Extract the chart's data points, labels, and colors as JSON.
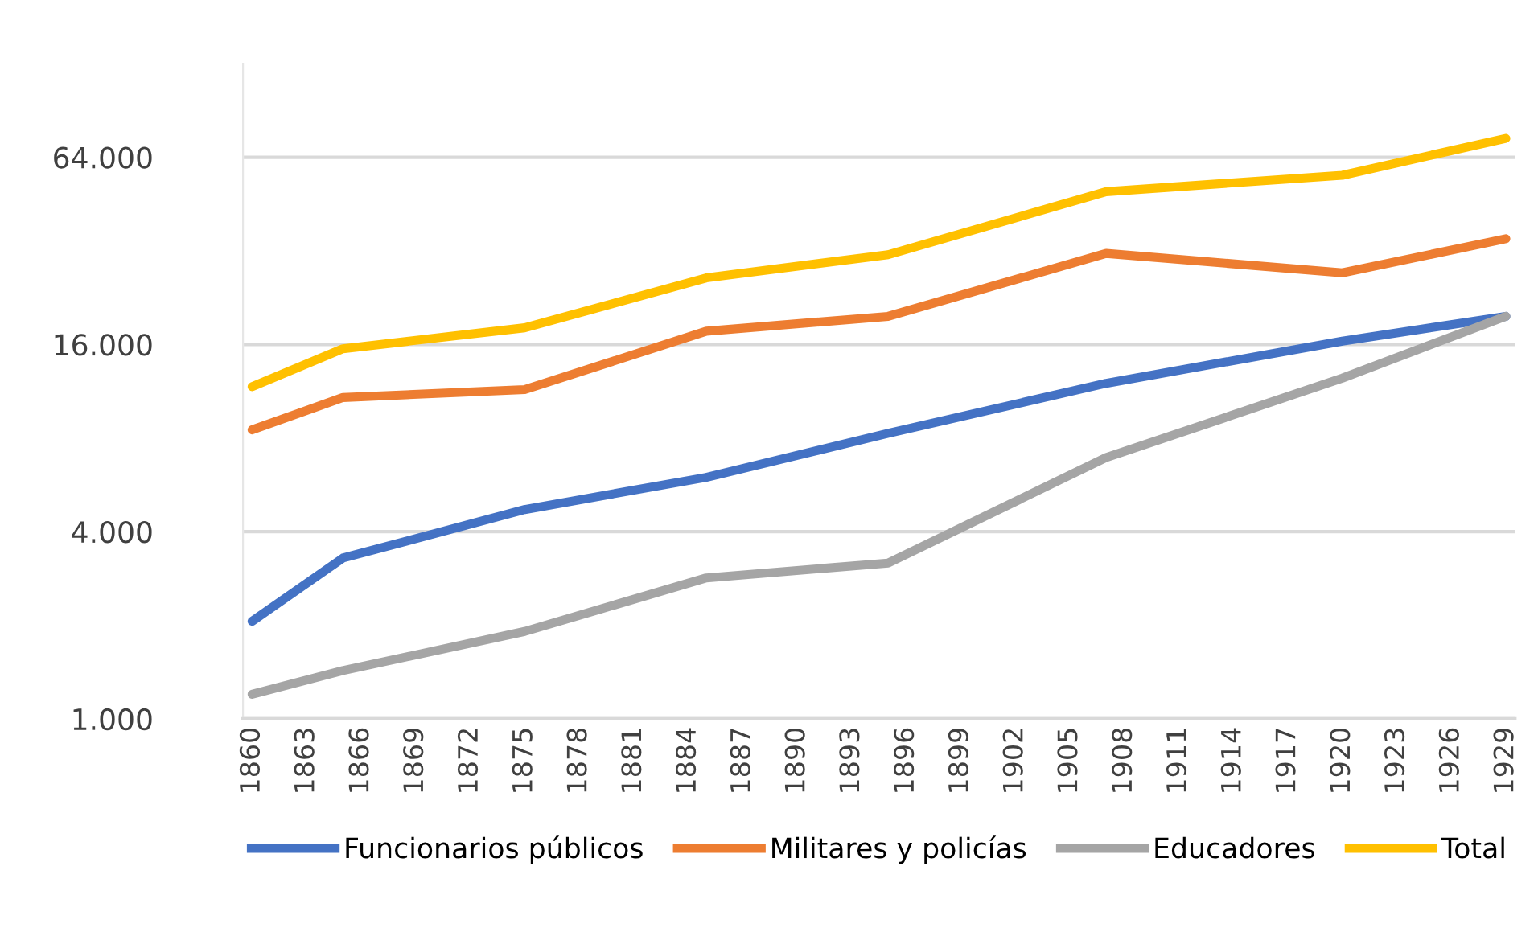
{
  "chart_data": {
    "type": "line",
    "log": "y",
    "grid": "y",
    "legend": "bottom",
    "marker": "none",
    "line_style": "solid",
    "x": [
      1860,
      1865,
      1875,
      1885,
      1895,
      1907,
      1920,
      1929
    ],
    "xlim": [
      1859.5,
      1929.5
    ],
    "xticks": [
      1860,
      1863,
      1866,
      1869,
      1872,
      1875,
      1878,
      1881,
      1884,
      1887,
      1890,
      1893,
      1896,
      1899,
      1902,
      1905,
      1908,
      1911,
      1914,
      1917,
      1920,
      1923,
      1926,
      1929
    ],
    "ylim": [
      1000,
      128000
    ],
    "yticks": [
      {
        "value": 1000,
        "label": "1.000"
      },
      {
        "value": 4000,
        "label": "4.000"
      },
      {
        "value": 16000,
        "label": "16.000"
      },
      {
        "value": 64000,
        "label": "64.000"
      }
    ],
    "series": [
      {
        "name": "Funcionarios públicos",
        "color": "#4472c4",
        "values": [
          2060,
          3290,
          4710,
          5980,
          8280,
          12000,
          16400,
          19700
        ]
      },
      {
        "name": "Militares y policías",
        "color": "#ed7d31",
        "values": [
          8500,
          10800,
          11450,
          17650,
          19700,
          31400,
          27200,
          35000
        ]
      },
      {
        "name": "Educadores",
        "color": "#a5a5a5",
        "values": [
          1200,
          1430,
          1910,
          2840,
          3170,
          6920,
          12470,
          19700
        ]
      },
      {
        "name": "Total",
        "color": "#ffc000",
        "values": [
          11700,
          15500,
          18100,
          26200,
          31100,
          49600,
          56000,
          73600
        ]
      }
    ]
  }
}
